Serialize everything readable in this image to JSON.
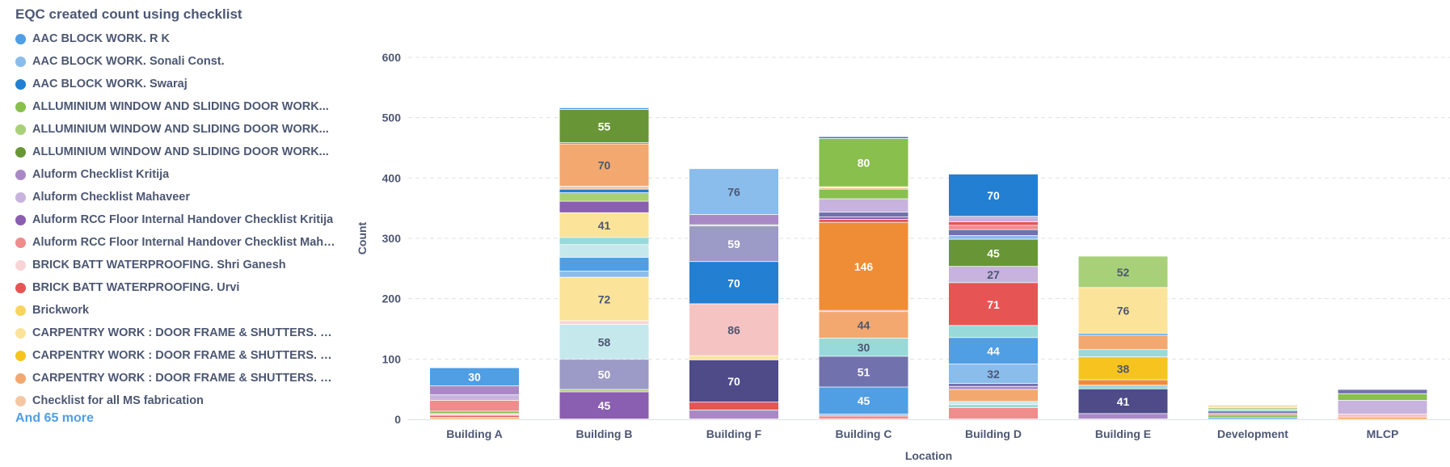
{
  "chart_data": {
    "type": "bar",
    "stacked": true,
    "title": "EQC created count using checklist",
    "xlabel": "Location",
    "ylabel": "Count",
    "ylim": [
      0,
      600
    ],
    "yticks": [
      0,
      100,
      200,
      300,
      400,
      500,
      600
    ],
    "grid": true,
    "legend_position": "left",
    "categories": [
      "Building A",
      "Building B",
      "Building F",
      "Building C",
      "Building D",
      "Building E",
      "Development",
      "MLCP"
    ],
    "legend": [
      {
        "label": "AAC BLOCK WORK. R K",
        "color": "#509ee3"
      },
      {
        "label": "AAC BLOCK WORK. Sonali Const.",
        "color": "#8abcec"
      },
      {
        "label": "AAC BLOCK WORK. Swaraj",
        "color": "#227fd2"
      },
      {
        "label": "ALLUMINIUM WINDOW AND SLIDING DOOR WORK...",
        "color": "#88bf4d"
      },
      {
        "label": "ALLUMINIUM WINDOW AND SLIDING DOOR WORK...",
        "color": "#a8d078"
      },
      {
        "label": "ALLUMINIUM WINDOW AND SLIDING DOOR WORK...",
        "color": "#689636"
      },
      {
        "label": "Aluform Checklist Kritija",
        "color": "#a989c5"
      },
      {
        "label": "Aluform Checklist Mahaveer",
        "color": "#c7b3dd"
      },
      {
        "label": "Aluform RCC Floor Internal Handover Checklist Kritija",
        "color": "#8a5eb0"
      },
      {
        "label": "Aluform RCC Floor Internal Handover Checklist Mahav...",
        "color": "#ef8c8c"
      },
      {
        "label": "BRICK BATT WATERPROOFING. Shri Ganesh",
        "color": "#f9d4d4"
      },
      {
        "label": "BRICK BATT WATERPROOFING. Urvi",
        "color": "#e75454"
      },
      {
        "label": "Brickwork",
        "color": "#f9d45c"
      },
      {
        "label": "CARPENTRY WORK : DOOR FRAME & SHUTTERS. Ha...",
        "color": "#fbe499"
      },
      {
        "label": "CARPENTRY WORK : DOOR FRAME & SHUTTERS. Na...",
        "color": "#f7c41f"
      },
      {
        "label": "CARPENTRY WORK : DOOR FRAME & SHUTTERS. Su...",
        "color": "#f2a86f"
      },
      {
        "label": "Checklist for all MS fabrication",
        "color": "#f5c6a2"
      }
    ],
    "more_label": "And 65 more",
    "stacks": [
      [
        {
          "value": 3,
          "color": "#f2a86f"
        },
        {
          "value": 3,
          "color": "#e75454"
        },
        {
          "value": 3,
          "color": "#f9d4d4"
        },
        {
          "value": 4,
          "color": "#88bf4d"
        },
        {
          "value": 18,
          "color": "#ef8c8c"
        },
        {
          "value": 9,
          "color": "#c7b3dd"
        },
        {
          "value": 15,
          "color": "#a989c5"
        },
        {
          "value": 30,
          "color": "#509ee3",
          "label": "30"
        }
      ],
      [
        {
          "value": 45,
          "color": "#8a5eb0",
          "label": "45"
        },
        {
          "value": 4,
          "color": "#a8d078"
        },
        {
          "value": 50,
          "color": "#9c9ac6",
          "label": "50"
        },
        {
          "value": 58,
          "color": "#c5e8ec",
          "label": "58"
        },
        {
          "value": 6,
          "color": "#f9d4d4"
        },
        {
          "value": 72,
          "color": "#fbe499",
          "label": "72"
        },
        {
          "value": 10,
          "color": "#8abcec"
        },
        {
          "value": 23,
          "color": "#509ee3"
        },
        {
          "value": 21,
          "color": "#c5e8ec"
        },
        {
          "value": 12,
          "color": "#98d9d9"
        },
        {
          "value": 41,
          "color": "#fbe499",
          "label": "41"
        },
        {
          "value": 19,
          "color": "#8a5eb0"
        },
        {
          "value": 14,
          "color": "#a8d078"
        },
        {
          "value": 6,
          "color": "#227fd2"
        },
        {
          "value": 5,
          "color": "#f5c6a2"
        },
        {
          "value": 70,
          "color": "#f2a86f",
          "label": "70"
        },
        {
          "value": 2,
          "color": "#227fd2"
        },
        {
          "value": 55,
          "color": "#689636",
          "label": "55"
        },
        {
          "value": 3,
          "color": "#509ee3"
        }
      ],
      [
        {
          "value": 15,
          "color": "#a989c5"
        },
        {
          "value": 13,
          "color": "#e75454"
        },
        {
          "value": 70,
          "color": "#4e4b88",
          "label": "70"
        },
        {
          "value": 7,
          "color": "#fbe499"
        },
        {
          "value": 86,
          "color": "#f6c3c3",
          "label": "86"
        },
        {
          "value": 70,
          "color": "#227fd2",
          "label": "70"
        },
        {
          "value": 59,
          "color": "#9c9ac6",
          "label": "59"
        },
        {
          "value": 2,
          "color": "#a8d078"
        },
        {
          "value": 17,
          "color": "#a989c5"
        },
        {
          "value": 76,
          "color": "#8abcec",
          "label": "76"
        }
      ],
      [
        {
          "value": 5,
          "color": "#ef8c8c"
        },
        {
          "value": 3,
          "color": "#8abcec"
        },
        {
          "value": 45,
          "color": "#509ee3",
          "label": "45"
        },
        {
          "value": 51,
          "color": "#7172ad",
          "label": "51"
        },
        {
          "value": 30,
          "color": "#98d9d9",
          "label": "30"
        },
        {
          "value": 44,
          "color": "#f2a86f",
          "label": "44"
        },
        {
          "value": 2,
          "color": "#ef8c8c"
        },
        {
          "value": 146,
          "color": "#ef8c36",
          "label": "146"
        },
        {
          "value": 5,
          "color": "#e75454"
        },
        {
          "value": 4,
          "color": "#8a5eb0"
        },
        {
          "value": 8,
          "color": "#7172ad"
        },
        {
          "value": 22,
          "color": "#c7b3dd"
        },
        {
          "value": 16,
          "color": "#88bf4d"
        },
        {
          "value": 2,
          "color": "#f2a86f"
        },
        {
          "value": 2,
          "color": "#fbe499"
        },
        {
          "value": 80,
          "color": "#88bf4d",
          "label": "80"
        },
        {
          "value": 3,
          "color": "#227fd2"
        }
      ],
      [
        {
          "value": 19,
          "color": "#ef8c8c"
        },
        {
          "value": 5,
          "color": "#98d9d9"
        },
        {
          "value": 5,
          "color": "#c5e8ec"
        },
        {
          "value": 20,
          "color": "#f2a86f"
        },
        {
          "value": 5,
          "color": "#a989c5"
        },
        {
          "value": 5,
          "color": "#7172ad"
        },
        {
          "value": 32,
          "color": "#8abcec",
          "label": "32"
        },
        {
          "value": 44,
          "color": "#509ee3",
          "label": "44"
        },
        {
          "value": 20,
          "color": "#98d9d9"
        },
        {
          "value": 71,
          "color": "#e75454",
          "label": "71"
        },
        {
          "value": 27,
          "color": "#c7b3dd",
          "label": "27"
        },
        {
          "value": 45,
          "color": "#689636",
          "label": "45"
        },
        {
          "value": 6,
          "color": "#8abcec"
        },
        {
          "value": 10,
          "color": "#7172ad"
        },
        {
          "value": 7,
          "color": "#ef8c8c"
        },
        {
          "value": 6,
          "color": "#e75454"
        },
        {
          "value": 9,
          "color": "#c7b3dd"
        },
        {
          "value": 70,
          "color": "#227fd2",
          "label": "70"
        }
      ],
      [
        {
          "value": 9,
          "color": "#a989c5"
        },
        {
          "value": 41,
          "color": "#4e4b88",
          "label": "41"
        },
        {
          "value": 6,
          "color": "#98d9d9"
        },
        {
          "value": 9,
          "color": "#ef8c36"
        },
        {
          "value": 38,
          "color": "#f7c41f",
          "label": "38"
        },
        {
          "value": 12,
          "color": "#98d9d9"
        },
        {
          "value": 24,
          "color": "#f2a86f"
        },
        {
          "value": 3,
          "color": "#509ee3"
        },
        {
          "value": 76,
          "color": "#fbe499",
          "label": "76"
        },
        {
          "value": 52,
          "color": "#a8d078",
          "label": "52"
        }
      ],
      [
        {
          "value": 3,
          "color": "#509ee3"
        },
        {
          "value": 4,
          "color": "#88bf4d"
        },
        {
          "value": 3,
          "color": "#ef8c8c"
        },
        {
          "value": 3,
          "color": "#4e4b88"
        },
        {
          "value": 3,
          "color": "#98d9d9"
        },
        {
          "value": 3,
          "color": "#a8d078"
        },
        {
          "value": 2,
          "color": "#fbe499"
        },
        {
          "value": 2,
          "color": "#f2a86f"
        }
      ],
      [
        {
          "value": 3,
          "color": "#ef8c36"
        },
        {
          "value": 5,
          "color": "#f6c3c3"
        },
        {
          "value": 23,
          "color": "#c7b3dd"
        },
        {
          "value": 11,
          "color": "#88bf4d"
        },
        {
          "value": 7,
          "color": "#7172ad"
        }
      ]
    ]
  }
}
